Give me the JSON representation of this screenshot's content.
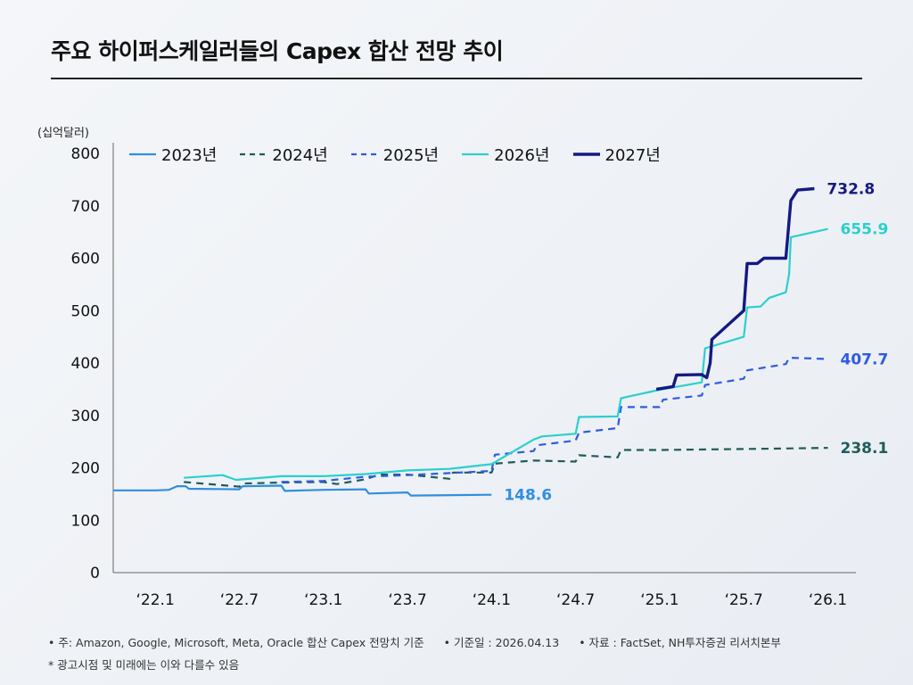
{
  "title": "주요 하이퍼스케일러들의 Capex 합산 전망 추이",
  "unit_label": "(십억달러)",
  "footer": {
    "note1": "• 주: Amazon, Google, Microsoft, Meta, Oracle 합산 Capex 전망치 기준",
    "note2": "• 기준일 : 2026.04.13",
    "note3": "• 자료 : FactSet, NH투자증권 리서치본부",
    "note4": "* 광고시점 및 미래에는 이와 다를수 있음"
  },
  "chart_data": {
    "type": "line",
    "title": "주요 하이퍼스케일러들의 Capex 합산 전망 추이",
    "ylabel": "(십억달러)",
    "ylim": [
      0,
      800
    ],
    "yticks": [
      0,
      100,
      200,
      300,
      400,
      500,
      600,
      700,
      800
    ],
    "xlim": [
      2022.0,
      2026.167
    ],
    "xticks": [
      {
        "label": "‘22.1",
        "x": 2022.0
      },
      {
        "label": "‘22.7",
        "x": 2022.5
      },
      {
        "label": "‘23.1",
        "x": 2023.0
      },
      {
        "label": "‘23.7",
        "x": 2023.5
      },
      {
        "label": "‘24.1",
        "x": 2024.0
      },
      {
        "label": "‘24.7",
        "x": 2024.5
      },
      {
        "label": "‘25.1",
        "x": 2025.0
      },
      {
        "label": "‘25.7",
        "x": 2025.5
      },
      {
        "label": "‘26.1",
        "x": 2026.0
      }
    ],
    "legend_position": "top",
    "grid": false,
    "series": [
      {
        "name": "2023년",
        "color": "#2f8fe0",
        "dash": "solid",
        "width": 2.2,
        "end_label": "148.6",
        "points": [
          [
            2021.75,
            157
          ],
          [
            2022.0,
            157
          ],
          [
            2022.08,
            158
          ],
          [
            2022.13,
            165
          ],
          [
            2022.18,
            165
          ],
          [
            2022.2,
            160
          ],
          [
            2022.5,
            159
          ],
          [
            2022.52,
            165
          ],
          [
            2022.75,
            166
          ],
          [
            2022.77,
            156
          ],
          [
            2023.0,
            158
          ],
          [
            2023.25,
            159
          ],
          [
            2023.27,
            151
          ],
          [
            2023.5,
            153
          ],
          [
            2023.52,
            147
          ],
          [
            2024.0,
            148.6
          ]
        ]
      },
      {
        "name": "2024년",
        "color": "#1e5c5a",
        "dash": "8,6",
        "width": 2.2,
        "end_label": "238.1",
        "points": [
          [
            2022.17,
            173
          ],
          [
            2022.5,
            164
          ],
          [
            2022.52,
            170
          ],
          [
            2022.75,
            172
          ],
          [
            2023.0,
            173
          ],
          [
            2023.08,
            169
          ],
          [
            2023.25,
            178
          ],
          [
            2023.33,
            187
          ],
          [
            2023.5,
            187
          ],
          [
            2023.75,
            179
          ],
          [
            2023.77,
            191
          ],
          [
            2024.0,
            191
          ],
          [
            2024.02,
            208
          ],
          [
            2024.25,
            214
          ],
          [
            2024.5,
            212
          ],
          [
            2024.52,
            224
          ],
          [
            2024.75,
            220
          ],
          [
            2024.77,
            234
          ],
          [
            2025.0,
            234
          ],
          [
            2025.5,
            236
          ],
          [
            2025.75,
            237
          ],
          [
            2026.0,
            238.1
          ]
        ]
      },
      {
        "name": "2025년",
        "color": "#2e5be0",
        "dash": "8,6",
        "width": 2.2,
        "end_label": "407.7",
        "points": [
          [
            2022.75,
            173
          ],
          [
            2023.0,
            175
          ],
          [
            2023.25,
            183
          ],
          [
            2023.5,
            186
          ],
          [
            2023.75,
            190
          ],
          [
            2024.0,
            194
          ],
          [
            2024.02,
            225
          ],
          [
            2024.25,
            232
          ],
          [
            2024.27,
            243
          ],
          [
            2024.5,
            252
          ],
          [
            2024.52,
            267
          ],
          [
            2024.75,
            276
          ],
          [
            2024.77,
            316
          ],
          [
            2025.0,
            316
          ],
          [
            2025.02,
            330
          ],
          [
            2025.25,
            338
          ],
          [
            2025.27,
            358
          ],
          [
            2025.5,
            370
          ],
          [
            2025.52,
            386
          ],
          [
            2025.75,
            398
          ],
          [
            2025.77,
            410
          ],
          [
            2026.0,
            407.7
          ]
        ]
      },
      {
        "name": "2026년",
        "color": "#2bcfcf",
        "dash": "solid",
        "width": 2.2,
        "end_label": "655.9",
        "points": [
          [
            2022.17,
            181
          ],
          [
            2022.4,
            186
          ],
          [
            2022.48,
            177
          ],
          [
            2022.75,
            184
          ],
          [
            2023.0,
            184
          ],
          [
            2023.25,
            188
          ],
          [
            2023.5,
            195
          ],
          [
            2023.75,
            198
          ],
          [
            2024.0,
            207
          ],
          [
            2024.25,
            254
          ],
          [
            2024.3,
            260
          ],
          [
            2024.5,
            265
          ],
          [
            2024.52,
            297
          ],
          [
            2024.75,
            298
          ],
          [
            2024.77,
            333
          ],
          [
            2025.0,
            349
          ],
          [
            2025.25,
            363
          ],
          [
            2025.27,
            428
          ],
          [
            2025.5,
            450
          ],
          [
            2025.52,
            506
          ],
          [
            2025.6,
            508
          ],
          [
            2025.65,
            524
          ],
          [
            2025.75,
            535
          ],
          [
            2025.77,
            570
          ],
          [
            2025.78,
            640
          ],
          [
            2026.0,
            655.9
          ]
        ]
      },
      {
        "name": "2027년",
        "color": "#141a80",
        "dash": "solid",
        "width": 3.4,
        "end_label": "732.8",
        "points": [
          [
            2024.98,
            350
          ],
          [
            2025.08,
            355
          ],
          [
            2025.1,
            377
          ],
          [
            2025.25,
            378
          ],
          [
            2025.28,
            372
          ],
          [
            2025.3,
            400
          ],
          [
            2025.31,
            445
          ],
          [
            2025.5,
            500
          ],
          [
            2025.52,
            590
          ],
          [
            2025.58,
            590
          ],
          [
            2025.62,
            600
          ],
          [
            2025.75,
            600
          ],
          [
            2025.78,
            710
          ],
          [
            2025.82,
            730
          ],
          [
            2025.92,
            732.8
          ]
        ]
      }
    ]
  }
}
